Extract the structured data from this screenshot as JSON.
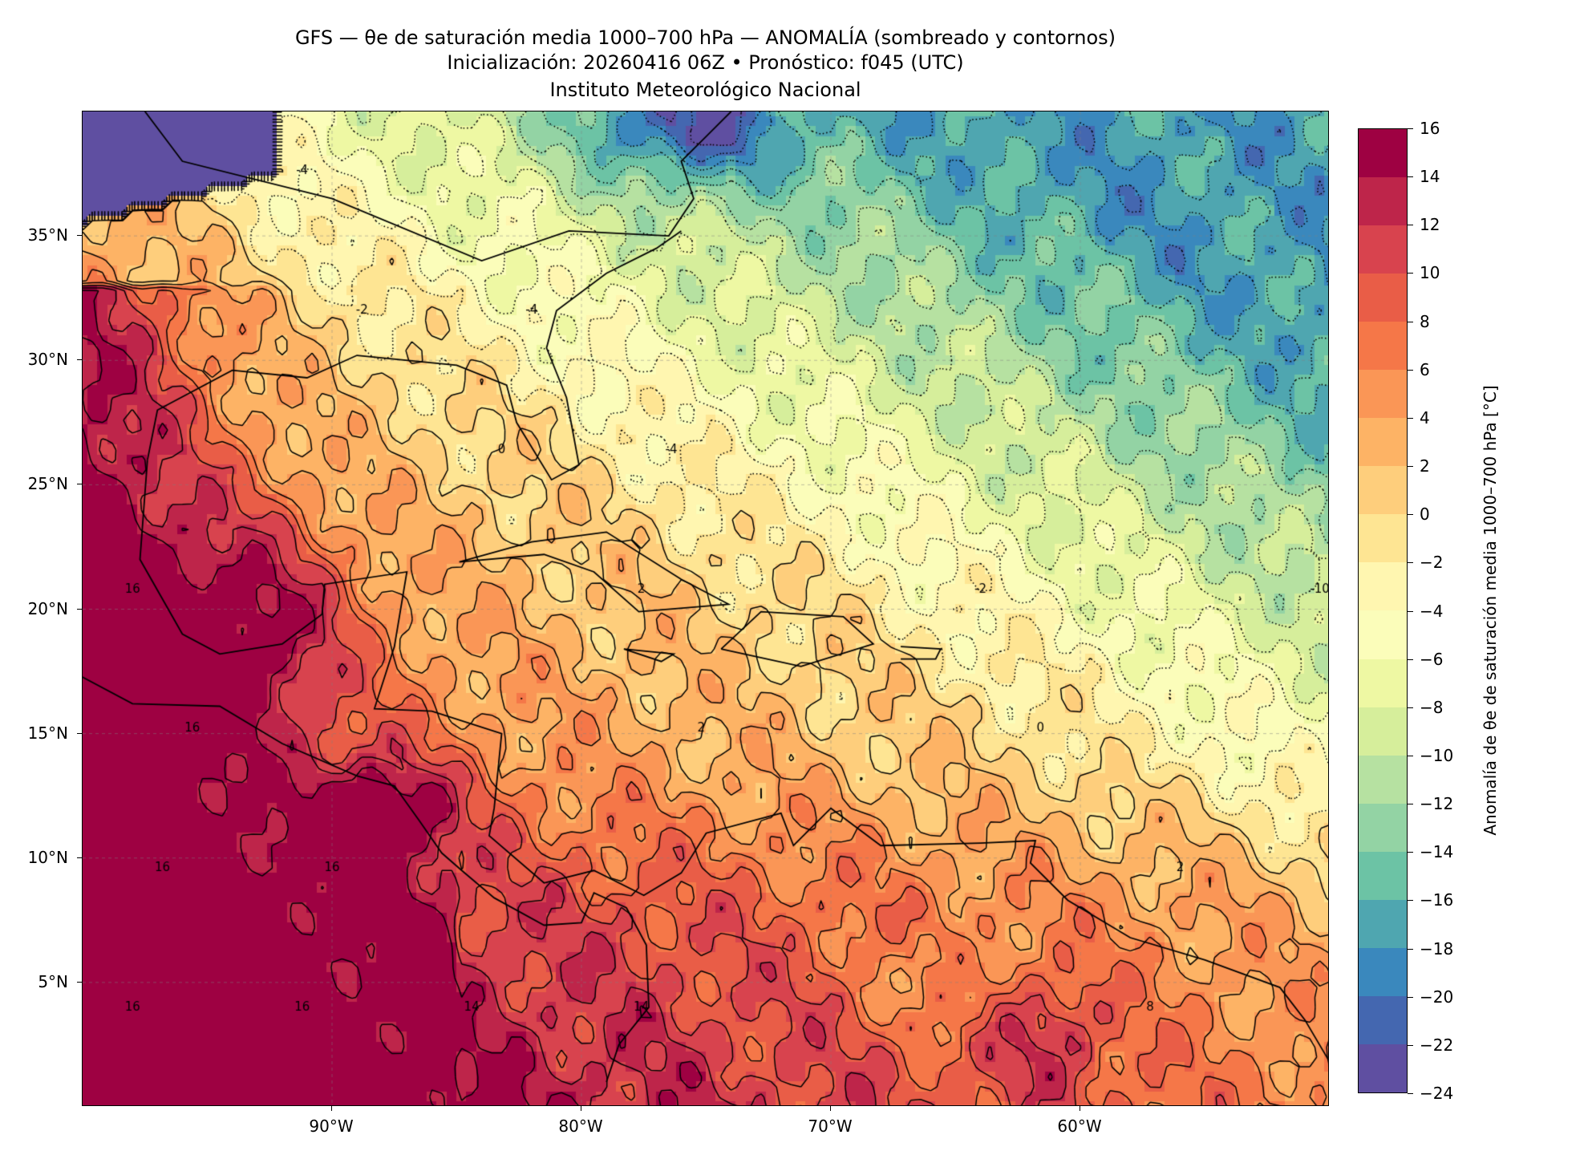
{
  "title": {
    "line1": "GFS — θe de saturación media 1000–700 hPa — ANOMALÍA (sombreado y contornos)",
    "line2": "Inicialización: 20260416 06Z   •   Pronóstico: f045 (UTC)",
    "line3": "Instituto Meteorológico Nacional"
  },
  "map": {
    "extent": {
      "lon": [
        -100,
        -50
      ],
      "lat": [
        0,
        40
      ]
    },
    "lat_ticks": [
      {
        "v": 35,
        "label": "35°N"
      },
      {
        "v": 30,
        "label": "30°N"
      },
      {
        "v": 25,
        "label": "25°N"
      },
      {
        "v": 20,
        "label": "20°N"
      },
      {
        "v": 15,
        "label": "15°N"
      },
      {
        "v": 10,
        "label": "10°N"
      },
      {
        "v": 5,
        "label": "5°N"
      }
    ],
    "lon_ticks": [
      {
        "v": -90,
        "label": "90°W"
      },
      {
        "v": -80,
        "label": "80°W"
      },
      {
        "v": -70,
        "label": "70°W"
      },
      {
        "v": -60,
        "label": "60°W"
      }
    ],
    "contour_levels": [
      -24,
      -22,
      -20,
      -18,
      -16,
      -14,
      -12,
      -10,
      -8,
      -6,
      -4,
      -2,
      0,
      2,
      4,
      6,
      8,
      10,
      12,
      14,
      16
    ]
  },
  "colorbar": {
    "label": "Anomalía de θe de saturación media 1000–700 hPa [°C]",
    "ticks": [
      "16",
      "14",
      "12",
      "10",
      "8",
      "6",
      "4",
      "2",
      "0",
      "−2",
      "−4",
      "−6",
      "−8",
      "−10",
      "−12",
      "−14",
      "−16",
      "−18",
      "−20",
      "−22",
      "−24"
    ],
    "colors": [
      "#9e0142",
      "#be254a",
      "#d8434e",
      "#e95d47",
      "#f57748",
      "#fa9656",
      "#fdb365",
      "#fece7c",
      "#fee593",
      "#fff6b0",
      "#fbfdba",
      "#eef8a3",
      "#d6ee9b",
      "#b6e1a1",
      "#93d3a4",
      "#6cc3a5",
      "#4fa6b0",
      "#3a88bd",
      "#4467b0",
      "#5f4fa1"
    ]
  }
}
